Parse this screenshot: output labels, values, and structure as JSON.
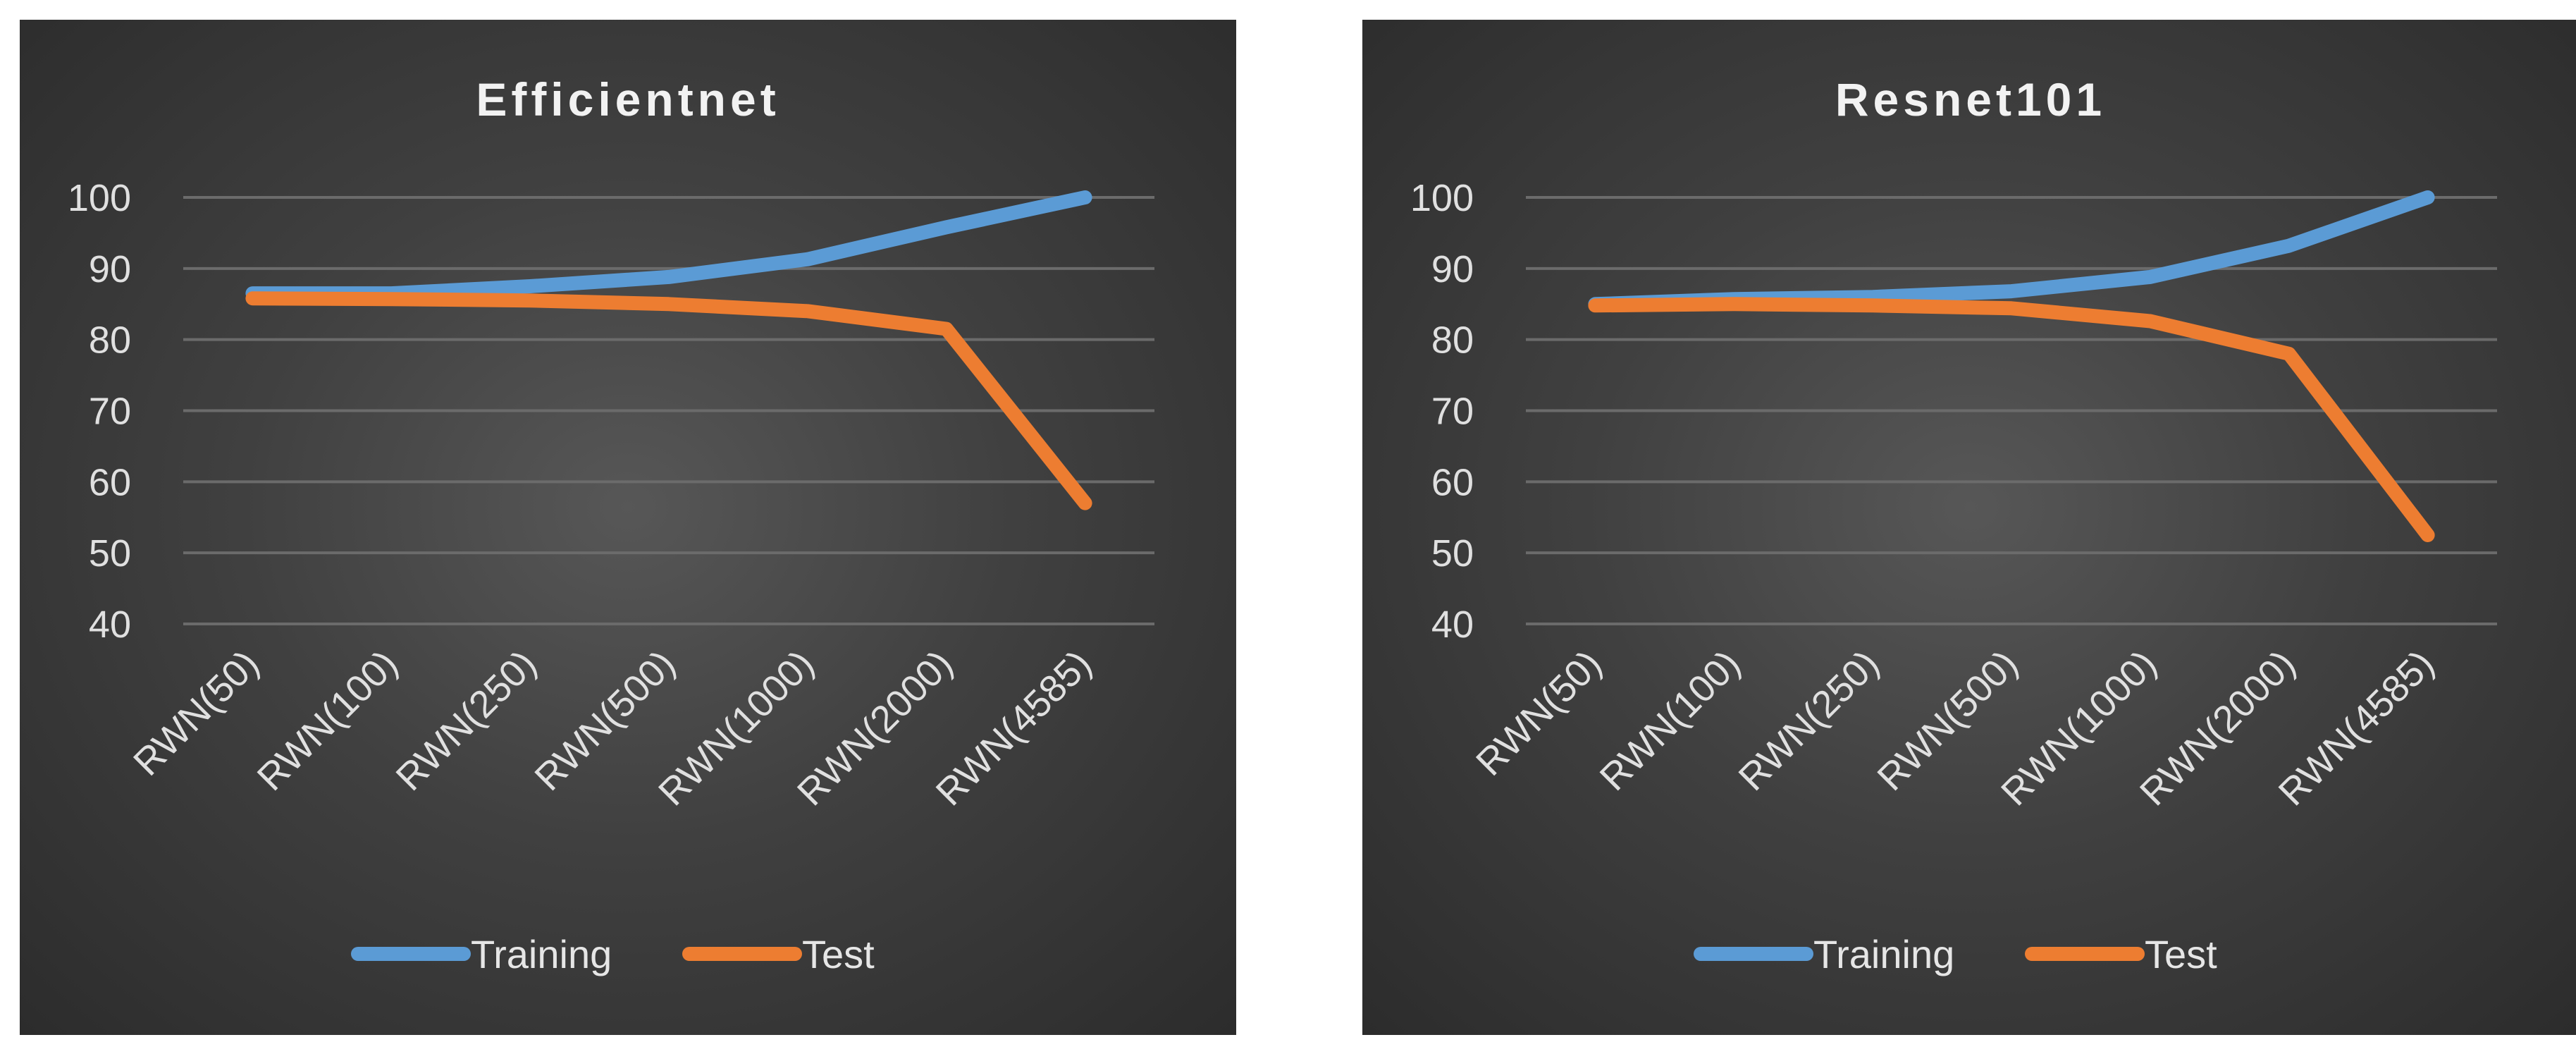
{
  "chart_data": [
    {
      "type": "line",
      "title": "Efficientnet",
      "categories": [
        "RWN(50)",
        "RWN(100)",
        "RWN(250)",
        "RWN(500)",
        "RWN(1000)",
        "RWN(2000)",
        "RWN(4585)"
      ],
      "yticks": [
        "100",
        "90",
        "80",
        "70",
        "60",
        "50",
        "40"
      ],
      "ylim": [
        40,
        100
      ],
      "grid": true,
      "legend_position": "bottom",
      "series": [
        {
          "name": "Training",
          "color": "#5b9bd5",
          "values": [
            86.5,
            86.5,
            87.5,
            88.8,
            91.3,
            95.8,
            100
          ]
        },
        {
          "name": "Test",
          "color": "#ed7d31",
          "values": [
            85.8,
            85.7,
            85.5,
            85.0,
            84.0,
            81.5,
            57.0
          ]
        }
      ]
    },
    {
      "type": "line",
      "title": "Resnet101",
      "categories": [
        "RWN(50)",
        "RWN(100)",
        "RWN(250)",
        "RWN(500)",
        "RWN(1000)",
        "RWN(2000)",
        "RWN(4585)"
      ],
      "yticks": [
        "100",
        "90",
        "80",
        "70",
        "60",
        "50",
        "40"
      ],
      "ylim": [
        40,
        100
      ],
      "grid": true,
      "legend_position": "bottom",
      "series": [
        {
          "name": "Training",
          "color": "#5b9bd5",
          "values": [
            85.0,
            85.7,
            86.0,
            86.8,
            88.8,
            93.2,
            100
          ]
        },
        {
          "name": "Test",
          "color": "#ed7d31",
          "values": [
            84.8,
            85.0,
            84.8,
            84.4,
            82.6,
            78.0,
            52.5
          ]
        }
      ]
    }
  ]
}
